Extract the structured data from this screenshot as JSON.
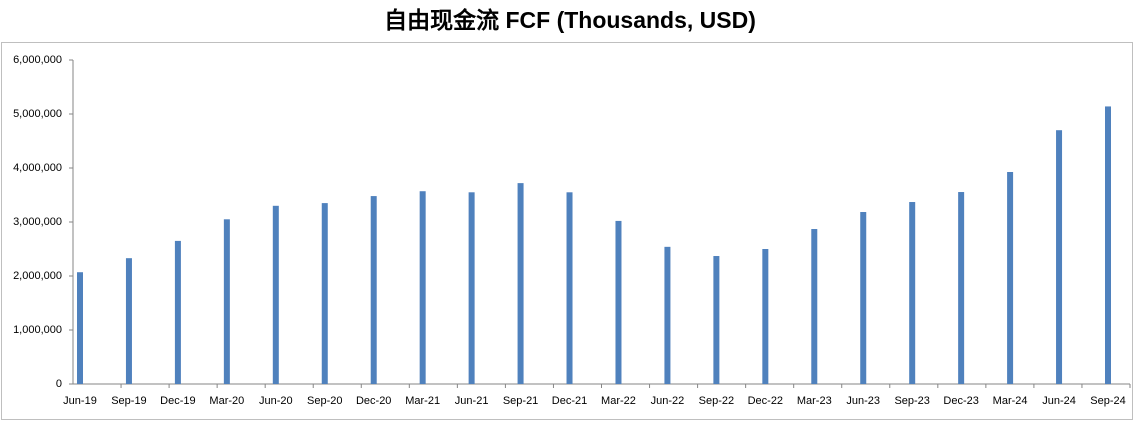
{
  "chart_data": {
    "type": "bar",
    "title": "自由现金流 FCF (Thousands, USD)",
    "categories": [
      "Jun-19",
      "Sep-19",
      "Dec-19",
      "Mar-20",
      "Jun-20",
      "Sep-20",
      "Dec-20",
      "Mar-21",
      "Jun-21",
      "Sep-21",
      "Dec-21",
      "Mar-22",
      "Jun-22",
      "Sep-22",
      "Dec-22",
      "Mar-23",
      "Jun-23",
      "Sep-23",
      "Dec-23",
      "Mar-24",
      "Jun-24",
      "Sep-24"
    ],
    "values": [
      2070000,
      2330000,
      2650000,
      3050000,
      3300000,
      3350000,
      3480000,
      3570000,
      3550000,
      3720000,
      3550000,
      3020000,
      2540000,
      2370000,
      2500000,
      2870000,
      3185000,
      3370000,
      3555000,
      3926000,
      4700000,
      5140000
    ],
    "color": "#4f81bd",
    "ylim": [
      0,
      6000000
    ],
    "yticks": [
      0,
      {
        "value": 1000000,
        "label": "1,000,000"
      },
      {
        "value": 2000000,
        "label": "2,000,000"
      },
      {
        "value": 3000000,
        "label": "3,000,000"
      },
      {
        "value": 4000000,
        "label": "4,000,000"
      },
      {
        "value": 5000000,
        "label": "5,000,000"
      },
      {
        "value": 6000000,
        "label": "6,000,000"
      }
    ],
    "grid": false
  }
}
